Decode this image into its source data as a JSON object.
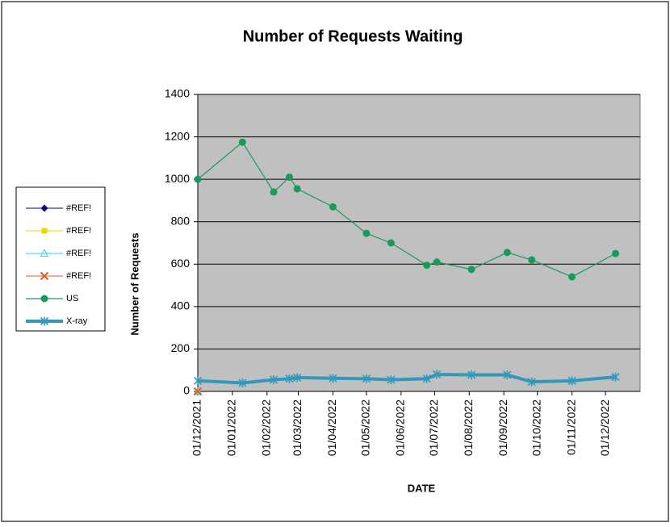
{
  "chart_data": {
    "type": "line",
    "title": "Number of Requests Waiting",
    "x_label": "DATE",
    "y_label": "Number of Requests",
    "x": [
      "2021-12-01",
      "2022-01-10",
      "2022-02-07",
      "2022-02-21",
      "2022-02-28",
      "2022-04-01",
      "2022-05-01",
      "2022-05-23",
      "2022-06-24",
      "2022-07-03",
      "2022-08-03",
      "2022-09-04",
      "2022-09-26",
      "2022-11-01",
      "2022-12-10"
    ],
    "xlim": [
      "2021-12-01",
      "2023-01-01"
    ],
    "xticks": [
      {
        "value": "2021-12-01",
        "label": "01/12/2021"
      },
      {
        "value": "2022-01-01",
        "label": "01/01/2022"
      },
      {
        "value": "2022-02-01",
        "label": "01/02/2022"
      },
      {
        "value": "2022-03-01",
        "label": "01/03/2022"
      },
      {
        "value": "2022-04-01",
        "label": "01/04/2022"
      },
      {
        "value": "2022-05-01",
        "label": "01/05/2022"
      },
      {
        "value": "2022-06-01",
        "label": "01/06/2022"
      },
      {
        "value": "2022-07-01",
        "label": "01/07/2022"
      },
      {
        "value": "2022-08-01",
        "label": "01/08/2022"
      },
      {
        "value": "2022-09-01",
        "label": "01/09/2022"
      },
      {
        "value": "2022-10-01",
        "label": "01/10/2022"
      },
      {
        "value": "2022-11-01",
        "label": "01/11/2022"
      },
      {
        "value": "2022-12-01",
        "label": "01/12/2022"
      }
    ],
    "ylim": [
      0,
      1400
    ],
    "yticks": [
      0,
      200,
      400,
      600,
      800,
      1000,
      1200,
      1400
    ],
    "grid": true,
    "legend": "left",
    "series": [
      {
        "name": "#REF!",
        "color": "#000080",
        "marker": "diamond",
        "width": 1,
        "values": [
          0,
          null,
          null,
          null,
          null,
          null,
          null,
          null,
          null,
          null,
          null,
          null,
          null,
          null,
          null
        ]
      },
      {
        "name": "#REF!",
        "color": "#e8d800",
        "marker": "square",
        "width": 1,
        "values": [
          0,
          null,
          null,
          null,
          null,
          null,
          null,
          null,
          null,
          null,
          null,
          null,
          null,
          null,
          null
        ]
      },
      {
        "name": "#REF!",
        "color": "#33ccff",
        "marker": "triangle",
        "width": 1,
        "values": [
          0,
          null,
          null,
          null,
          null,
          null,
          null,
          null,
          null,
          null,
          null,
          null,
          null,
          null,
          null
        ]
      },
      {
        "name": "#REF!",
        "color": "#e06020",
        "marker": "x",
        "width": 1,
        "values": [
          0,
          null,
          null,
          null,
          null,
          null,
          null,
          null,
          null,
          null,
          null,
          null,
          null,
          null,
          null
        ]
      },
      {
        "name": "US",
        "color": "#1a9a5a",
        "marker": "circle",
        "width": 1.2,
        "values": [
          1000,
          1175,
          940,
          1010,
          955,
          870,
          745,
          700,
          595,
          610,
          575,
          655,
          620,
          540,
          650
        ]
      },
      {
        "name": "X-ray",
        "color": "#3399bb",
        "marker": "star",
        "width": 4,
        "values": [
          50,
          40,
          55,
          60,
          65,
          62,
          60,
          55,
          60,
          80,
          78,
          78,
          45,
          50,
          68
        ]
      }
    ]
  }
}
